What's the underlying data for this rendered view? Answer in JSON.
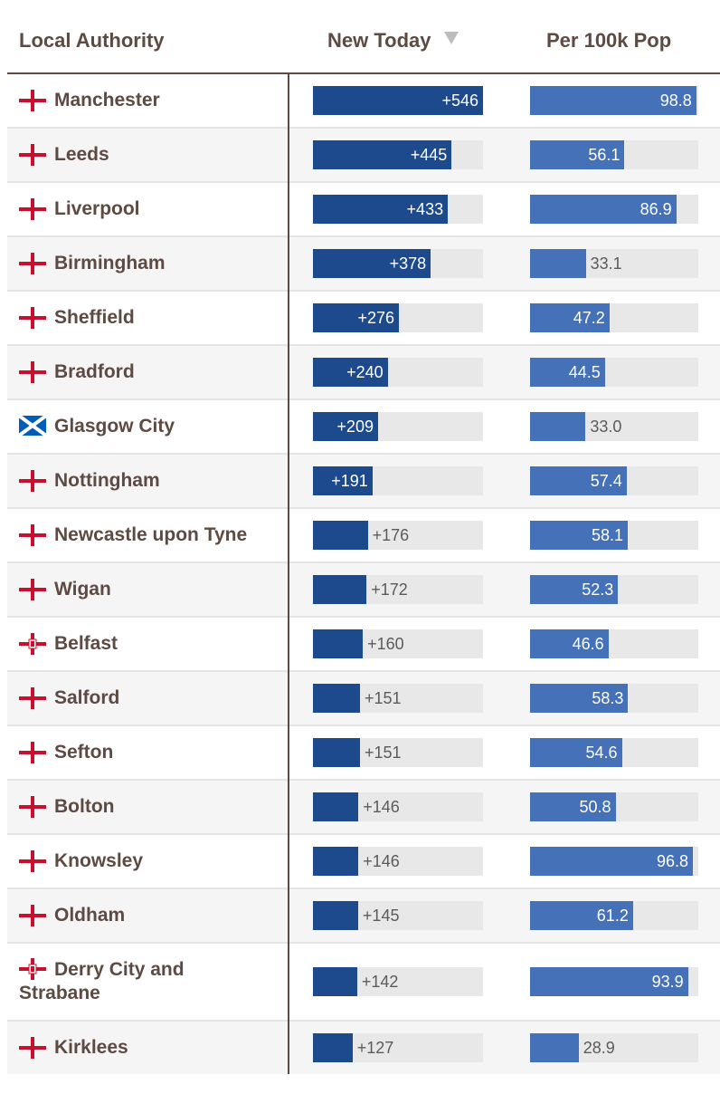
{
  "headers": {
    "name": "Local Authority",
    "new_today": "New Today",
    "per_100k": "Per 100k Pop",
    "sort_icon": "sort-descending-icon"
  },
  "colors": {
    "new_bar": "#1d4a8c",
    "per_bar": "#4571b8",
    "track": "#e8e8e8",
    "text": "#5d4a43",
    "flag_red": "#c8102e",
    "flag_blue": "#005eb8"
  },
  "chart_data": {
    "type": "table",
    "columns": [
      "Local Authority",
      "New Today",
      "Per 100k Pop"
    ],
    "new_today_range": [
      0,
      546
    ],
    "per_100k_range": [
      0,
      100
    ],
    "rows": [
      {
        "name": "Manchester",
        "flag": "england",
        "new_today": 546,
        "new_today_label": "+546",
        "per_100k": 98.8,
        "per_100k_label": "98.8"
      },
      {
        "name": "Leeds",
        "flag": "england",
        "new_today": 445,
        "new_today_label": "+445",
        "per_100k": 56.1,
        "per_100k_label": "56.1"
      },
      {
        "name": "Liverpool",
        "flag": "england",
        "new_today": 433,
        "new_today_label": "+433",
        "per_100k": 86.9,
        "per_100k_label": "86.9"
      },
      {
        "name": "Birmingham",
        "flag": "england",
        "new_today": 378,
        "new_today_label": "+378",
        "per_100k": 33.1,
        "per_100k_label": "33.1"
      },
      {
        "name": "Sheffield",
        "flag": "england",
        "new_today": 276,
        "new_today_label": "+276",
        "per_100k": 47.2,
        "per_100k_label": "47.2"
      },
      {
        "name": "Bradford",
        "flag": "england",
        "new_today": 240,
        "new_today_label": "+240",
        "per_100k": 44.5,
        "per_100k_label": "44.5"
      },
      {
        "name": "Glasgow City",
        "flag": "scotland",
        "new_today": 209,
        "new_today_label": "+209",
        "per_100k": 33.0,
        "per_100k_label": "33.0"
      },
      {
        "name": "Nottingham",
        "flag": "england",
        "new_today": 191,
        "new_today_label": "+191",
        "per_100k": 57.4,
        "per_100k_label": "57.4"
      },
      {
        "name": "Newcastle upon Tyne",
        "flag": "england",
        "new_today": 176,
        "new_today_label": "+176",
        "per_100k": 58.1,
        "per_100k_label": "58.1"
      },
      {
        "name": "Wigan",
        "flag": "england",
        "new_today": 172,
        "new_today_label": "+172",
        "per_100k": 52.3,
        "per_100k_label": "52.3"
      },
      {
        "name": "Belfast",
        "flag": "northern-ireland",
        "new_today": 160,
        "new_today_label": "+160",
        "per_100k": 46.6,
        "per_100k_label": "46.6"
      },
      {
        "name": "Salford",
        "flag": "england",
        "new_today": 151,
        "new_today_label": "+151",
        "per_100k": 58.3,
        "per_100k_label": "58.3"
      },
      {
        "name": "Sefton",
        "flag": "england",
        "new_today": 151,
        "new_today_label": "+151",
        "per_100k": 54.6,
        "per_100k_label": "54.6"
      },
      {
        "name": "Bolton",
        "flag": "england",
        "new_today": 146,
        "new_today_label": "+146",
        "per_100k": 50.8,
        "per_100k_label": "50.8"
      },
      {
        "name": "Knowsley",
        "flag": "england",
        "new_today": 146,
        "new_today_label": "+146",
        "per_100k": 96.8,
        "per_100k_label": "96.8"
      },
      {
        "name": "Oldham",
        "flag": "england",
        "new_today": 145,
        "new_today_label": "+145",
        "per_100k": 61.2,
        "per_100k_label": "61.2"
      },
      {
        "name": "Derry City and Strabane",
        "name_line1": "Derry City and",
        "name_line2": "Strabane",
        "flag": "northern-ireland",
        "new_today": 142,
        "new_today_label": "+142",
        "per_100k": 93.9,
        "per_100k_label": "93.9"
      },
      {
        "name": "Kirklees",
        "flag": "england",
        "new_today": 127,
        "new_today_label": "+127",
        "per_100k": 28.9,
        "per_100k_label": "28.9"
      }
    ]
  }
}
